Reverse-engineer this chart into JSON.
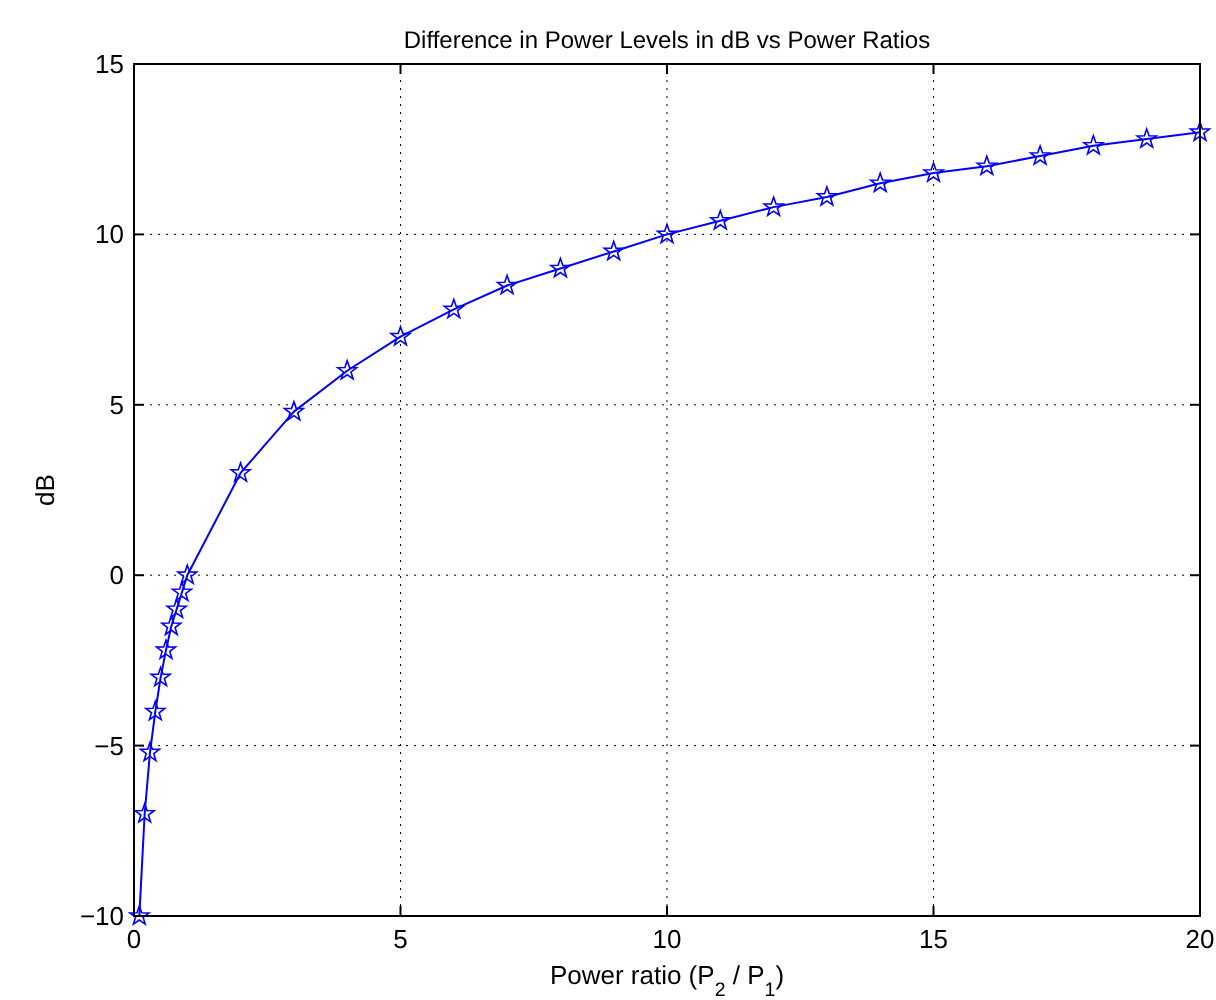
{
  "chart_data": {
    "type": "line",
    "title": "Difference in Power Levels in dB vs Power Ratios",
    "xlabel": "Power ratio (P$_{2}$ / P$_{1}$)",
    "ylabel": "dB",
    "x": [
      0.1,
      0.2,
      0.3,
      0.4,
      0.5,
      0.6,
      0.7,
      0.8,
      0.9,
      1,
      2,
      3,
      4,
      5,
      6,
      7,
      8,
      9,
      10,
      11,
      12,
      13,
      14,
      15,
      16,
      17,
      18,
      19,
      20
    ],
    "series": [
      {
        "color": "#0000ff",
        "values": [
          -10,
          -7,
          -5.2,
          -4,
          -3,
          -2.2,
          -1.5,
          -1,
          -0.5,
          0,
          3,
          4.8,
          6,
          7,
          7.8,
          8.5,
          9,
          9.5,
          10,
          10.4,
          10.8,
          11.1,
          11.5,
          11.8,
          12,
          12.3,
          12.6,
          12.8,
          13
        ]
      }
    ],
    "xlim": [
      0,
      20
    ],
    "xticks": [
      0,
      5,
      10,
      15,
      20
    ],
    "ylim": [
      -10,
      15
    ],
    "yticks": [
      -10,
      -5,
      0,
      5,
      10,
      15
    ],
    "grid": true,
    "marker": "star",
    "line_style": "solid"
  }
}
